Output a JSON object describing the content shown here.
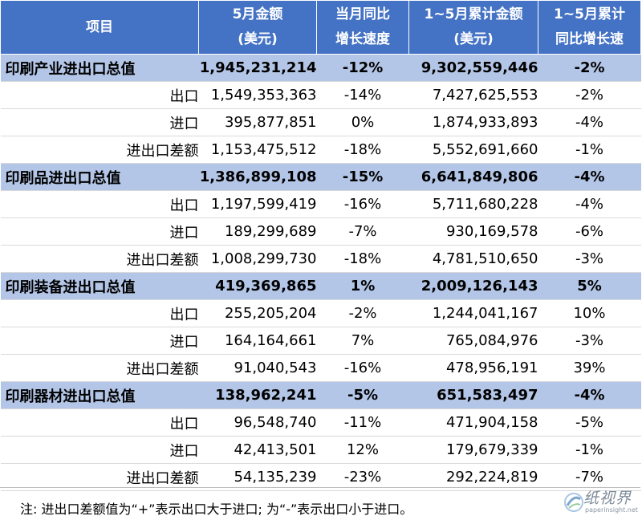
{
  "header": {
    "item": "项目",
    "col1": [
      "5月金额",
      "(美元)"
    ],
    "col2": [
      "当月同比",
      "增长速度"
    ],
    "col3": [
      "1~5月累计金额",
      "(美元)"
    ],
    "col4": [
      "1~5月累计",
      "同比增长速"
    ]
  },
  "rows": [
    {
      "name": "印刷产业进出口总值",
      "amount": "1,945,231,214",
      "growth": "-12%",
      "cumulative": "9,302,559,446",
      "cum_growth": "-2%"
    },
    {
      "name": "出口",
      "amount": "1,549,353,363",
      "growth": "-14%",
      "cumulative": "7,427,625,553",
      "cum_growth": "-2%"
    },
    {
      "name": "进口",
      "amount": "395,877,851",
      "growth": "0%",
      "cumulative": "1,874,933,893",
      "cum_growth": "-4%"
    },
    {
      "name": "进出口差额",
      "amount": "1,153,475,512",
      "growth": "-18%",
      "cumulative": "5,552,691,660",
      "cum_growth": "-1%"
    },
    {
      "name": "印刷品进出口总值",
      "amount": "1,386,899,108",
      "growth": "-15%",
      "cumulative": "6,641,849,806",
      "cum_growth": "-4%"
    },
    {
      "name": "出口",
      "amount": "1,197,599,419",
      "growth": "-16%",
      "cumulative": "5,711,680,228",
      "cum_growth": "-4%"
    },
    {
      "name": "进口",
      "amount": "189,299,689",
      "growth": "-7%",
      "cumulative": "930,169,578",
      "cum_growth": "-6%"
    },
    {
      "name": "进出口差额",
      "amount": "1,008,299,730",
      "growth": "-18%",
      "cumulative": "4,781,510,650",
      "cum_growth": "-3%"
    },
    {
      "name": "印刷装备进出口总值",
      "amount": "419,369,865",
      "growth": "1%",
      "cumulative": "2,009,126,143",
      "cum_growth": "5%"
    },
    {
      "name": "出口",
      "amount": "255,205,204",
      "growth": "-2%",
      "cumulative": "1,244,041,167",
      "cum_growth": "10%"
    },
    {
      "name": "进口",
      "amount": "164,164,661",
      "growth": "7%",
      "cumulative": "765,084,976",
      "cum_growth": "-3%"
    },
    {
      "name": "进出口差额",
      "amount": "91,040,543",
      "growth": "-16%",
      "cumulative": "478,956,191",
      "cum_growth": "39%"
    },
    {
      "name": "印刷器材进出口总值",
      "amount": "138,962,241",
      "growth": "-5%",
      "cumulative": "651,583,497",
      "cum_growth": "-4%"
    },
    {
      "name": "出口",
      "amount": "96,548,740",
      "growth": "-11%",
      "cumulative": "471,904,158",
      "cum_growth": "-5%"
    },
    {
      "name": "进口",
      "amount": "42,413,501",
      "growth": "12%",
      "cumulative": "179,679,339",
      "cum_growth": "-1%"
    },
    {
      "name": "进出口差额",
      "amount": "54,135,239",
      "growth": "-23%",
      "cumulative": "292,224,819",
      "cum_growth": "-7%"
    }
  ],
  "note": "注: 进出口差额值为“+”表示出口大于进口; 为“-”表示出口小于进口。",
  "watermark": {
    "text": "纸视界",
    "sub": "paperinsight.net"
  },
  "colors": {
    "header_bg": "#4472c4",
    "total_row_bg": "#b4c6e7"
  }
}
